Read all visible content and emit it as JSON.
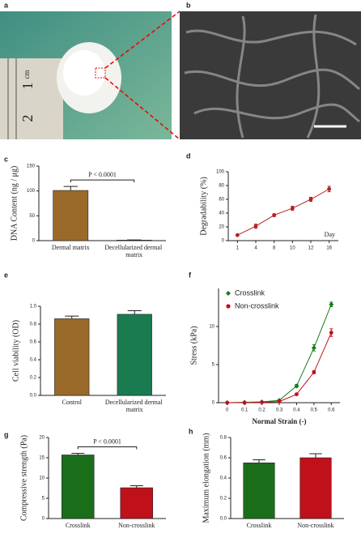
{
  "panels": {
    "a": {
      "label": "a",
      "ruler_labels": [
        "cm",
        "1",
        "2"
      ]
    },
    "b": {
      "label": "b"
    }
  },
  "chart_data": [
    {
      "type": "bar",
      "label": "c",
      "ylabel": "DNA Content (ng / μg)",
      "categories": [
        "Dermal matrix",
        "Decellularized dermal matrix"
      ],
      "values": [
        101,
        1
      ],
      "errors": [
        8,
        0.5
      ],
      "colors": [
        "#9a6a2a",
        "#9a6a2a"
      ],
      "ylim": [
        0,
        150
      ],
      "yticks": [
        0,
        50,
        100,
        150
      ],
      "annotation": "P < 0.0001"
    },
    {
      "type": "line",
      "label": "d",
      "ylabel": "Degradability (%)",
      "xlabel": "Day",
      "categories": [
        "1",
        "4",
        "8",
        "10",
        "12",
        "16"
      ],
      "series": [
        {
          "color": "#b22222",
          "marker": "circle",
          "values": [
            8,
            21,
            37,
            47,
            60,
            75
          ],
          "errors": [
            1,
            3,
            2,
            3,
            3,
            4
          ]
        }
      ],
      "ylim": [
        0,
        100
      ],
      "yticks": [
        0,
        20,
        40,
        60,
        80,
        100
      ]
    },
    {
      "type": "bar",
      "label": "e",
      "ylabel": "Cell viability (OD)",
      "categories": [
        "Control",
        "Decellularized dermal matrix"
      ],
      "values": [
        0.86,
        0.91
      ],
      "errors": [
        0.03,
        0.04
      ],
      "colors": [
        "#9a6a2a",
        "#1a7a50"
      ],
      "ylim": [
        0,
        1.0
      ],
      "yticks": [
        {
          "value": 0,
          "label": "0.0"
        },
        0.2,
        0.4,
        0.6,
        0.8,
        {
          "value": 1,
          "label": "1.0"
        }
      ]
    },
    {
      "type": "line",
      "label": "f",
      "ylabel": "Stress (kPa)",
      "xlabel": "Normal Strain (-)",
      "x": [
        0,
        0.1,
        0.2,
        0.3,
        0.4,
        0.5,
        0.6
      ],
      "series": [
        {
          "name": "Crosslink",
          "color": "#1a7a1a",
          "marker": "diamond",
          "values": [
            0,
            0.05,
            0.1,
            0.3,
            2.2,
            7.2,
            12.9
          ],
          "errors": [
            0,
            0,
            0,
            0,
            0.2,
            0.4,
            0.3
          ]
        },
        {
          "name": "Non-crosslink",
          "color": "#c0101a",
          "marker": "circle",
          "values": [
            0,
            0,
            0.05,
            0.15,
            1.1,
            4.0,
            9.2
          ],
          "errors": [
            0,
            0,
            0,
            0,
            0.1,
            0.2,
            0.5
          ]
        }
      ],
      "xlim": [
        -0.05,
        0.65
      ],
      "xticks": [
        0,
        0.1,
        0.2,
        0.3,
        0.4,
        0.5,
        0.6
      ],
      "ylim": [
        0,
        15
      ],
      "yticks": [
        0,
        5,
        10
      ],
      "legend": "top-left"
    },
    {
      "type": "bar",
      "label": "g",
      "ylabel": "Compressive strength (Pa)",
      "categories": [
        "Crosslink",
        "Non-crosslink"
      ],
      "values": [
        15.7,
        7.6
      ],
      "errors": [
        0.4,
        0.5
      ],
      "colors": [
        "#1a6e1a",
        "#c0101a"
      ],
      "ylim": [
        0,
        20
      ],
      "yticks": [
        0,
        5,
        10,
        15,
        20
      ],
      "annotation": "P < 0.0001"
    },
    {
      "type": "bar",
      "label": "h",
      "ylabel": "Maximum elongation (mm)",
      "categories": [
        "Crosslink",
        "Non-crosslink"
      ],
      "values": [
        0.55,
        0.6
      ],
      "errors": [
        0.03,
        0.04
      ],
      "colors": [
        "#1a6e1a",
        "#c0101a"
      ],
      "ylim": [
        0,
        0.8
      ],
      "yticks": [
        {
          "value": 0,
          "label": "0.0"
        },
        0.2,
        0.4,
        0.6,
        0.8
      ]
    }
  ]
}
